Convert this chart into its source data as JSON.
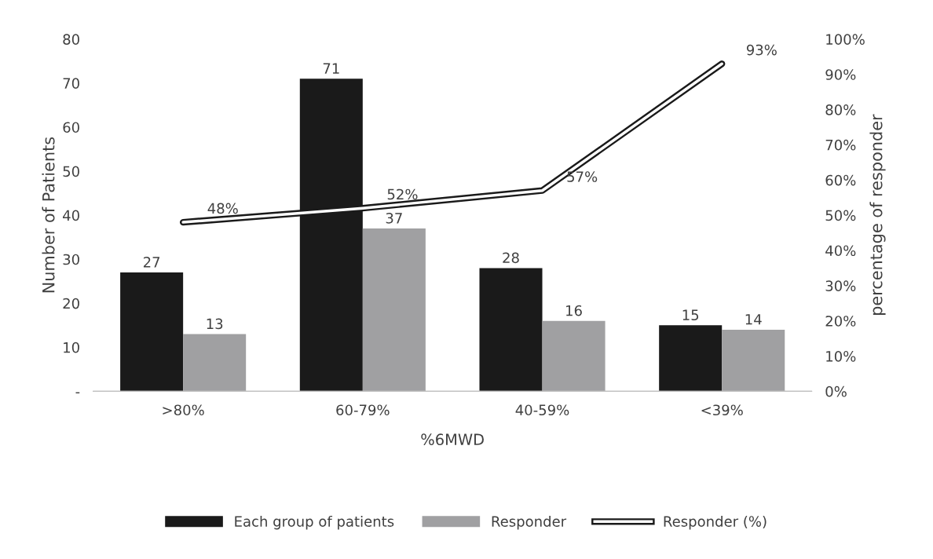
{
  "chart_data": {
    "type": "bar",
    "categories": [
      ">80%",
      "60-79%",
      "40-59%",
      "<39%"
    ],
    "xlabel": "%6MWD",
    "ylabel": "Number of Patients",
    "y2label": "percentage of responder",
    "series": [
      {
        "name": "Each group of patients",
        "color": "#1a1a1a",
        "values": [
          27,
          71,
          28,
          15
        ]
      },
      {
        "name": "Responder",
        "color": "#a0a0a2",
        "values": [
          13,
          37,
          16,
          14
        ]
      },
      {
        "name": "Responder (%)",
        "type": "line",
        "axis": "y2",
        "color": "#1a1a1a",
        "values": [
          48,
          52,
          57,
          93
        ],
        "value_labels": [
          "48%",
          "52%",
          "57%",
          "93%"
        ]
      }
    ],
    "ylim": [
      0,
      80
    ],
    "yticks": [
      {
        "value": 0,
        "label": "-"
      },
      10,
      20,
      30,
      40,
      50,
      60,
      70,
      80
    ],
    "y2lim": [
      0,
      100
    ],
    "y2ticks": [
      {
        "value": 0,
        "label": "0%"
      },
      {
        "value": 10,
        "label": "10%"
      },
      {
        "value": 20,
        "label": "20%"
      },
      {
        "value": 30,
        "label": "30%"
      },
      {
        "value": 40,
        "label": "40%"
      },
      {
        "value": 50,
        "label": "50%"
      },
      {
        "value": 60,
        "label": "60%"
      },
      {
        "value": 70,
        "label": "70%"
      },
      {
        "value": 80,
        "label": "80%"
      },
      {
        "value": 90,
        "label": "90%"
      },
      {
        "value": 100,
        "label": "100%"
      }
    ],
    "data_labels": true,
    "legend": "bottom",
    "grid": false
  }
}
